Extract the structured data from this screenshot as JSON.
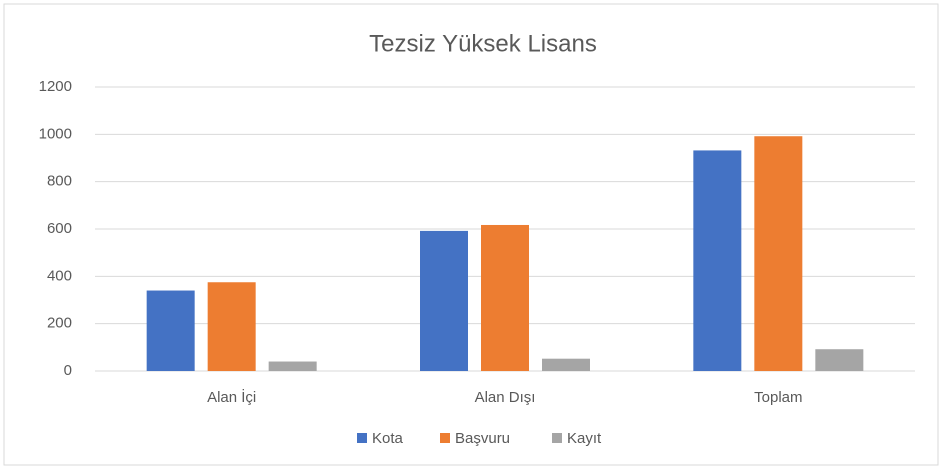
{
  "chart_data": {
    "type": "bar",
    "title": "Tezsiz Yüksek Lisans",
    "categories": [
      "Alan İçi",
      "Alan Dışı",
      "Toplam"
    ],
    "series": [
      {
        "name": "Kota",
        "color": "#4472c4",
        "values": [
          340,
          592,
          932
        ]
      },
      {
        "name": "Başvuru",
        "color": "#ed7d31",
        "values": [
          375,
          617,
          992
        ]
      },
      {
        "name": "Kayıt",
        "color": "#a5a5a5",
        "values": [
          40,
          52,
          92
        ]
      }
    ],
    "ylim": [
      0,
      1200
    ],
    "yticks": [
      0,
      200,
      400,
      600,
      800,
      1000,
      1200
    ],
    "grid": true,
    "legend": "bottom"
  }
}
